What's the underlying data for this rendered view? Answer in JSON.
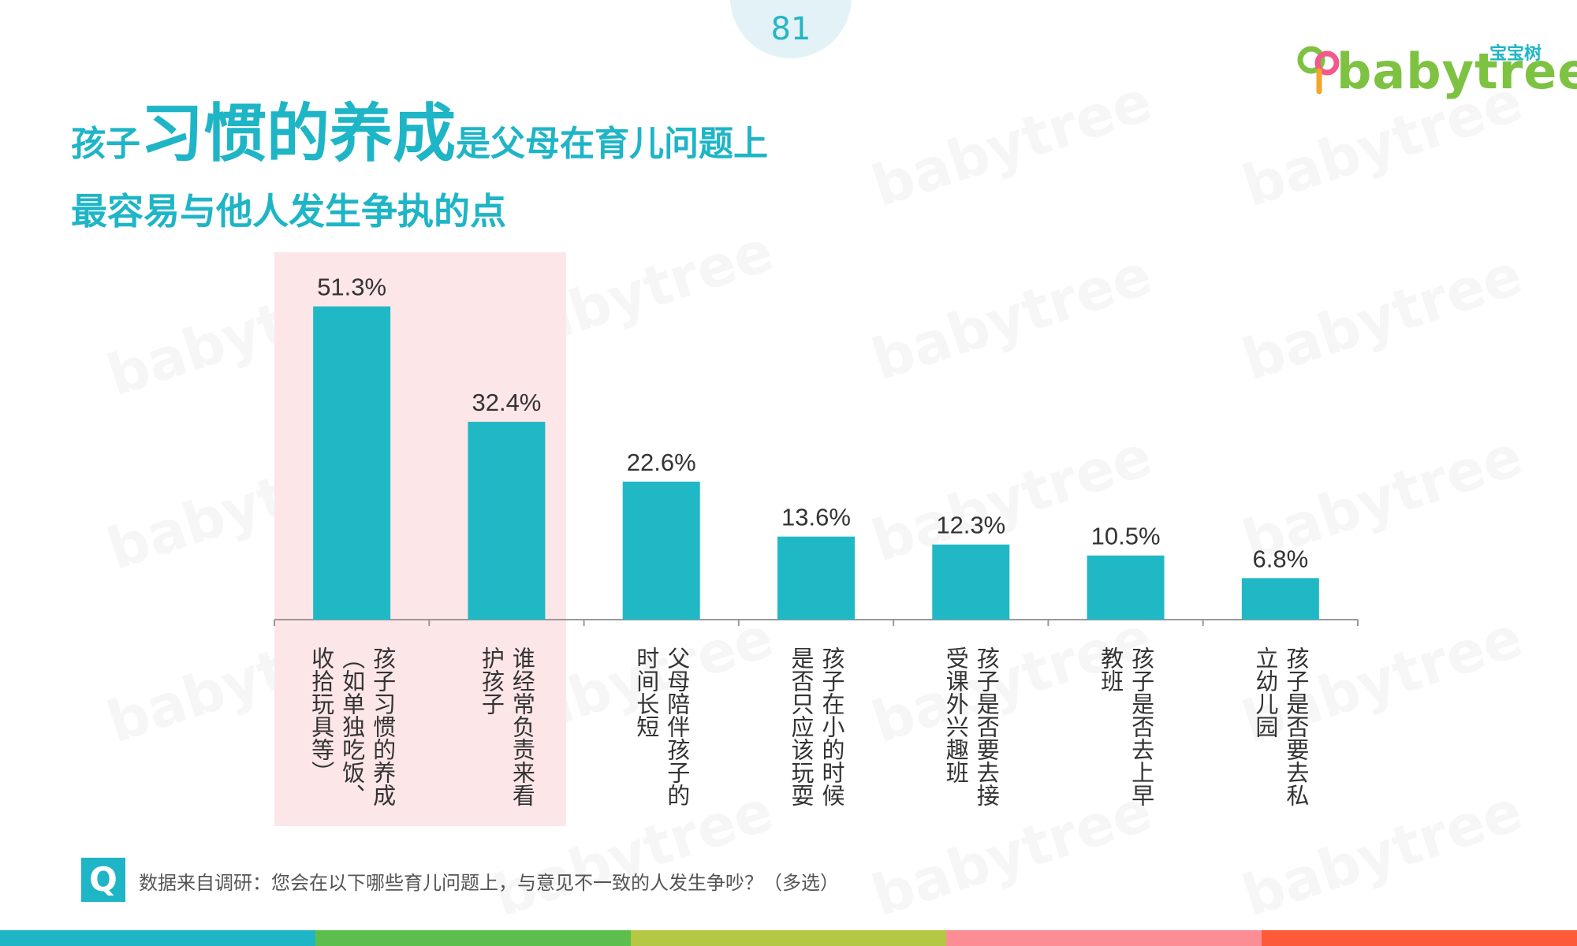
{
  "page_number": "81",
  "logo": {
    "cn": "宝宝树",
    "en": "babytree"
  },
  "title": {
    "line1_pre": "孩子",
    "line1_emph": "习惯的养成",
    "line1_post": "是父母在育儿问题上",
    "line2": "最容易与他人发生争执的点"
  },
  "chart_data": {
    "type": "bar",
    "categories": [
      [
        "孩子习惯的养成",
        "（如单独吃饭、",
        "收拾玩具等）"
      ],
      [
        "谁经常负责来看",
        "护孩子"
      ],
      [
        "父母陪伴孩子的",
        "时间长短"
      ],
      [
        "孩子在小的时候",
        "是否只应该玩耍"
      ],
      [
        "孩子是否要去接",
        "受课外兴趣班"
      ],
      [
        "孩子是否去上早",
        "教班"
      ],
      [
        "孩子是否要去私",
        "立幼儿园"
      ]
    ],
    "values": [
      51.3,
      32.4,
      22.6,
      13.6,
      12.3,
      10.5,
      6.8
    ],
    "data_labels": [
      "51.3%",
      "32.4%",
      "22.6%",
      "13.6%",
      "12.3%",
      "10.5%",
      "6.8%"
    ],
    "highlighted_categories": [
      0,
      1
    ],
    "ylim": [
      0,
      60
    ],
    "grid": false,
    "bar_color": "#21b8c6",
    "highlight_color": "#fde6e8"
  },
  "source": {
    "icon_letter": "Q",
    "text": "数据来自调研：您会在以下哪些育儿问题上，与意见不一致的人发生争吵？（多选）"
  },
  "colors": {
    "accent": "#1eb5c6",
    "bottom_bar": [
      "#1eb5c6",
      "#5cbf4d",
      "#b5c843",
      "#fd8d94",
      "#fd5a3a"
    ]
  }
}
